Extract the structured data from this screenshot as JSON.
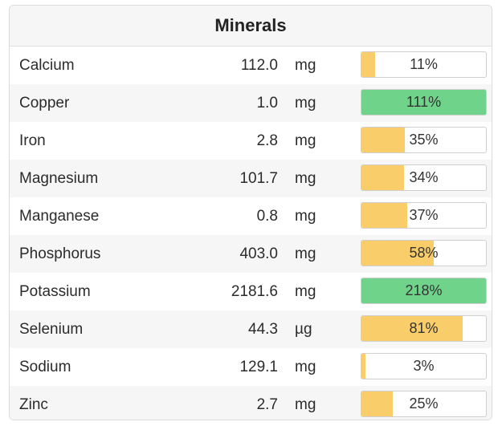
{
  "panel": {
    "title": "Minerals"
  },
  "colors": {
    "partial": "#f9cd6a",
    "met": "#6fd48a"
  },
  "minerals": [
    {
      "name": "Calcium",
      "amount": "112.0",
      "unit": "mg",
      "percent_label": "11%",
      "percent": 11
    },
    {
      "name": "Copper",
      "amount": "1.0",
      "unit": "mg",
      "percent_label": "111%",
      "percent": 111
    },
    {
      "name": "Iron",
      "amount": "2.8",
      "unit": "mg",
      "percent_label": "35%",
      "percent": 35
    },
    {
      "name": "Magnesium",
      "amount": "101.7",
      "unit": "mg",
      "percent_label": "34%",
      "percent": 34
    },
    {
      "name": "Manganese",
      "amount": "0.8",
      "unit": "mg",
      "percent_label": "37%",
      "percent": 37
    },
    {
      "name": "Phosphorus",
      "amount": "403.0",
      "unit": "mg",
      "percent_label": "58%",
      "percent": 58
    },
    {
      "name": "Potassium",
      "amount": "2181.6",
      "unit": "mg",
      "percent_label": "218%",
      "percent": 218
    },
    {
      "name": "Selenium",
      "amount": "44.3",
      "unit": "µg",
      "percent_label": "81%",
      "percent": 81
    },
    {
      "name": "Sodium",
      "amount": "129.1",
      "unit": "mg",
      "percent_label": "3%",
      "percent": 3
    },
    {
      "name": "Zinc",
      "amount": "2.7",
      "unit": "mg",
      "percent_label": "25%",
      "percent": 25
    }
  ]
}
